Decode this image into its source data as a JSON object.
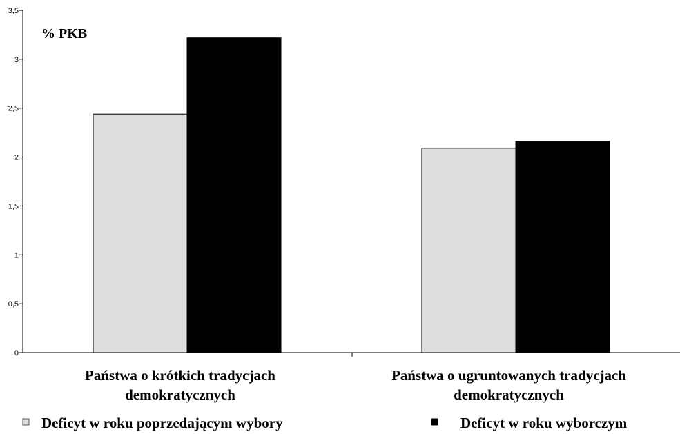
{
  "chart_data": {
    "type": "bar",
    "unit_label": "% PKB",
    "categories": [
      [
        "Państwa o krótkich tradycjach",
        "demokratycznych"
      ],
      [
        "Państwa o ugruntowanych tradycjach",
        "demokratycznych"
      ]
    ],
    "series": [
      {
        "name": "Deficyt w roku poprzedającym wybory",
        "values": [
          2.44,
          2.09
        ],
        "color": "#dddddd"
      },
      {
        "name": "Deficyt w roku wyborczym",
        "values": [
          3.22,
          2.16
        ],
        "color": "#000000"
      }
    ],
    "y_ticks": [
      "0",
      "0,5",
      "1",
      "1,5",
      "2",
      "2,5",
      "3",
      "3,5"
    ],
    "ylim": [
      0,
      3.5
    ],
    "grid": false,
    "legend_position": "bottom"
  }
}
